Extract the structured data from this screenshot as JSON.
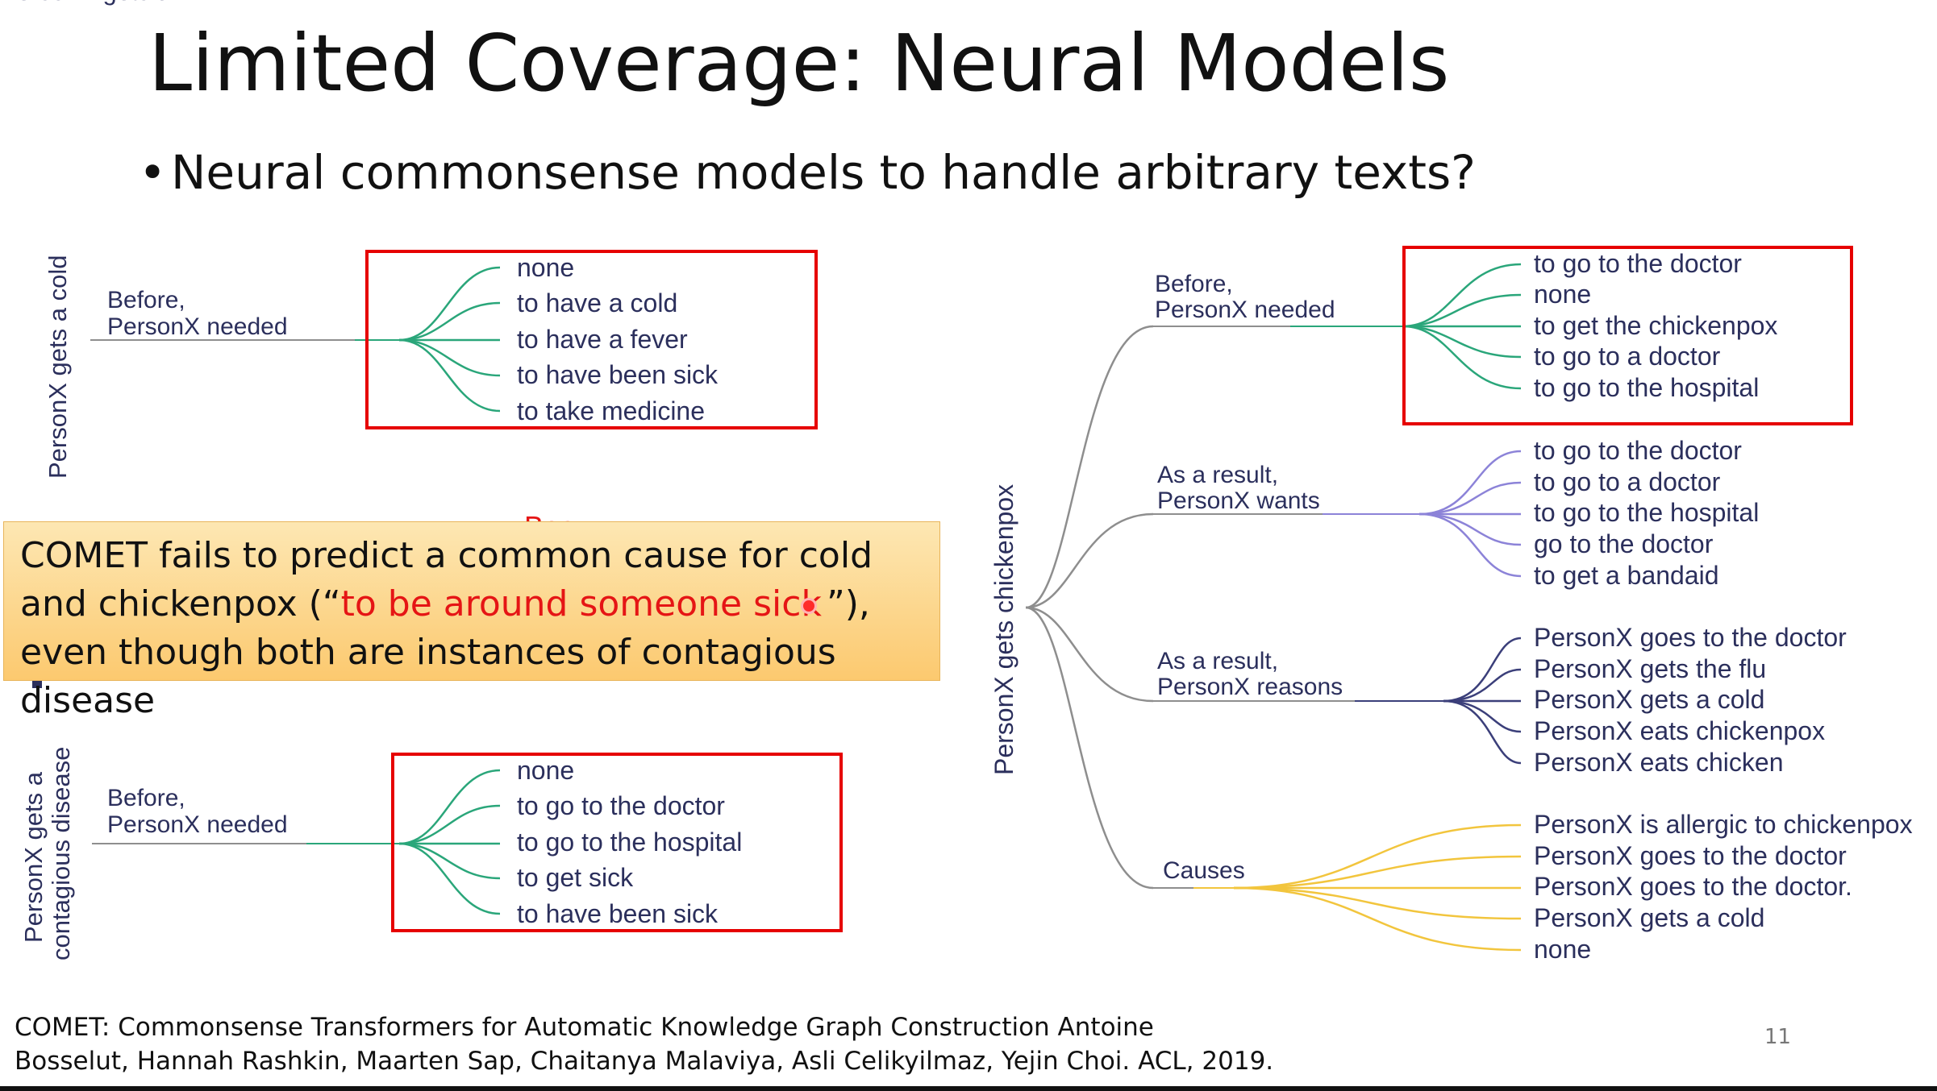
{
  "slide": {
    "title": "Limited Coverage: Neural Models",
    "bullet": "Neural commonsense models to handle arbitrary texts?",
    "page_number": "11"
  },
  "colors": {
    "teal": "#2aa67a",
    "purple": "#8c83d8",
    "indigo": "#3b3f7a",
    "gold": "#f2c53d",
    "gray": "#8e8e8e",
    "highlight_red": "#e51515",
    "text_navy": "#2b2f5c"
  },
  "trees": {
    "cold": {
      "root": "PersonX gets a cold",
      "relation_lines": [
        "Before,",
        "PersonX needed"
      ],
      "items": [
        "none",
        "to have a cold",
        "to have a fever",
        "to have been sick",
        "to take medicine"
      ]
    },
    "contagious": {
      "root_lines": [
        "PersonX gets a",
        "contagious disease"
      ],
      "relation_lines": [
        "Before,",
        "PersonX needed"
      ],
      "items": [
        "none",
        "to go to the doctor",
        "to go to the hospital",
        "to get sick",
        "to have been sick"
      ]
    },
    "chickenpox": {
      "root": "PersonX gets chickenpox",
      "branches": [
        {
          "relation_lines": [
            "Before,",
            "PersonX needed"
          ],
          "items": [
            "to go to the doctor",
            "none",
            "to get the chickenpox",
            "to go to a doctor",
            "to go to the hospital"
          ]
        },
        {
          "relation_lines": [
            "As a result,",
            "PersonX wants"
          ],
          "items": [
            "to go to the doctor",
            "to go to a doctor",
            "to go to the hospital",
            "go to the doctor",
            "to get a bandaid"
          ]
        },
        {
          "relation_lines": [
            "As a result,",
            "PersonX reasons"
          ],
          "items": [
            "PersonX goes to the doctor",
            "PersonX gets the flu",
            "PersonX gets a cold",
            "PersonX eats chickenpox",
            "PersonX eats chicken"
          ]
        },
        {
          "relation_lines": [
            "Causes"
          ],
          "items": [
            "PersonX is allergic to chickenpox",
            "PersonX goes to the doctor",
            "PersonX goes to the doctor.",
            "PersonX gets a cold",
            "none"
          ]
        }
      ]
    }
  },
  "callout": {
    "before": "COMET fails to predict a common cause for cold and chickenpox (“",
    "highlight": "to be around someone sick",
    "after": "”), even though both are instances of contagious disease"
  },
  "citation": {
    "line1": "COMET: Commonsense Transformers for Automatic Knowledge Graph Construction Antoine",
    "line2": "Bosselut, Hannah Rashkin, Maarten Sap, Chaitanya Malaviya, Asli Celikyilmaz, Yejin Choi. ACL, 2019."
  }
}
